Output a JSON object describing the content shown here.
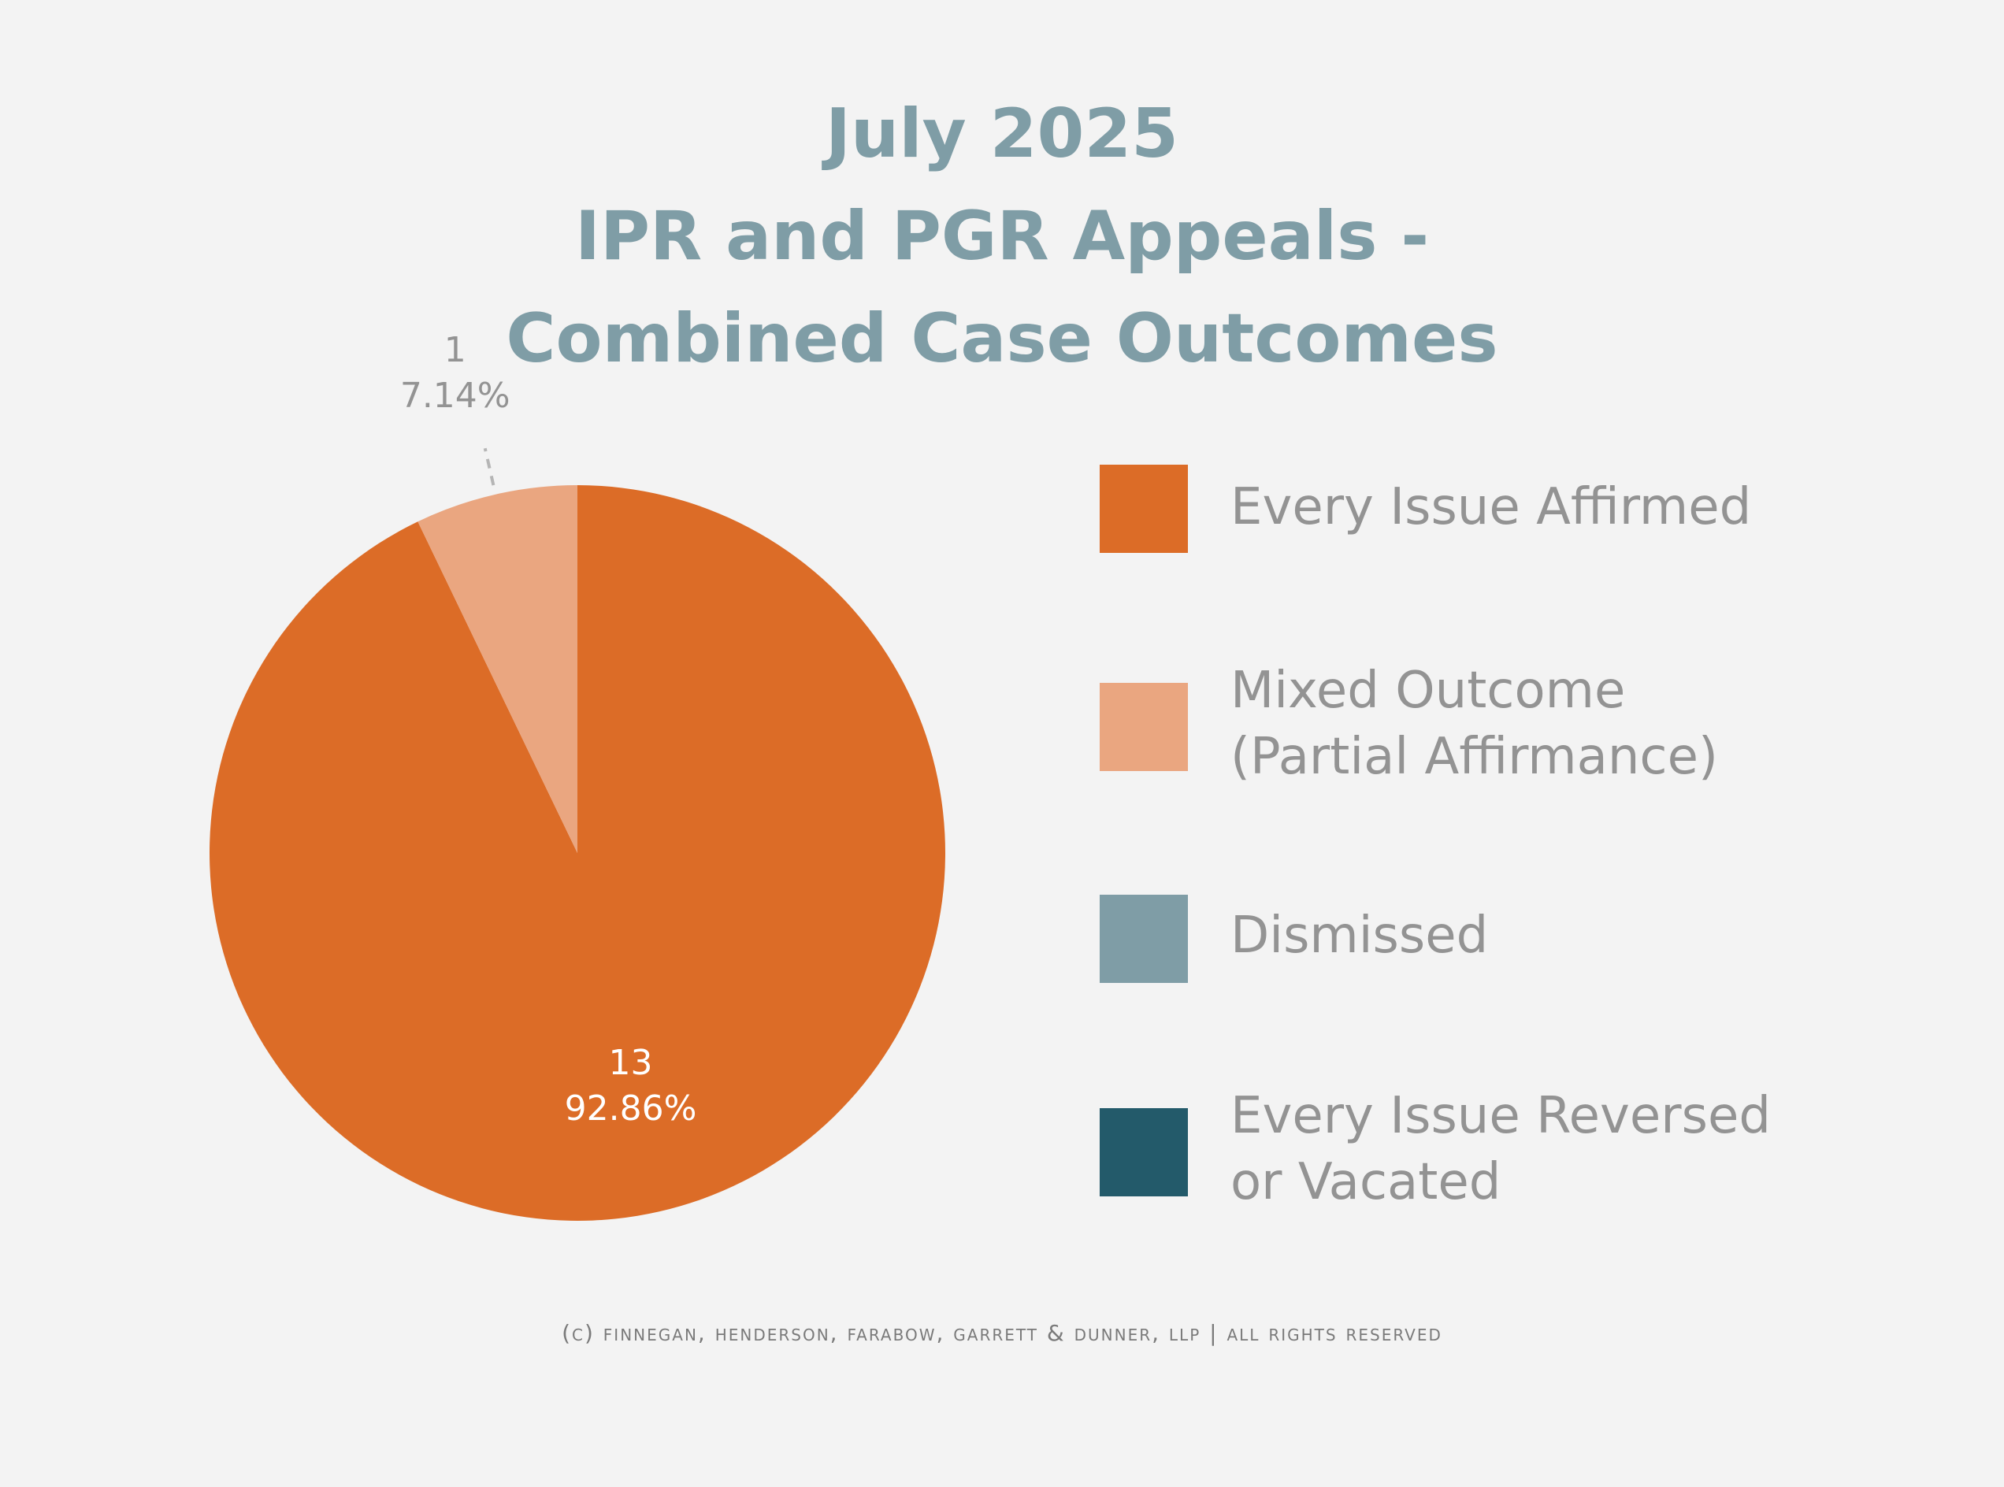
{
  "title": {
    "line1": "July 2025",
    "line2": "IPR and PGR Appeals -",
    "line3": "Combined Case Outcomes"
  },
  "chart_data": {
    "type": "pie",
    "title": "July 2025 IPR and PGR Appeals - Combined Case Outcomes",
    "slices": [
      {
        "label": "Every Issue Affirmed",
        "count": 13,
        "count_text": "13",
        "percent": 92.86,
        "percent_text": "92.86%",
        "color": "#dc6c27"
      },
      {
        "label": "Mixed Outcome (Partial Affirmance)",
        "count": 1,
        "count_text": "1",
        "percent": 7.14,
        "percent_text": "7.14%",
        "color": "#eaa680"
      },
      {
        "label": "Dismissed",
        "count": 0,
        "percent": 0,
        "color": "#7f9da6"
      },
      {
        "label": "Every Issue Reversed or Vacated",
        "count": 0,
        "percent": 0,
        "color": "#235a6a"
      }
    ],
    "start": "top, clockwise",
    "legend_position": "right",
    "label_colors": {
      "inside": "#ffffff",
      "outside": "#939393"
    }
  },
  "legend": {
    "items": [
      {
        "lines": [
          "Every Issue Affirmed"
        ],
        "color": "#dc6c27"
      },
      {
        "lines": [
          "Mixed Outcome",
          "(Partial Affirmance)"
        ],
        "color": "#eaa680"
      },
      {
        "lines": [
          "Dismissed"
        ],
        "color": "#7f9da6"
      },
      {
        "lines": [
          "Every Issue Reversed",
          "or Vacated"
        ],
        "color": "#235a6a"
      }
    ]
  },
  "footer": {
    "text": "(c) finnegan, henderson, farabow, garrett & dunner, llp | all rights reserved"
  }
}
